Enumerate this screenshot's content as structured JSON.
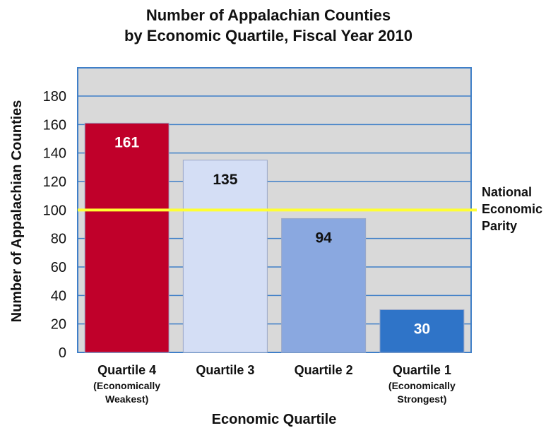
{
  "chart_data": {
    "type": "bar",
    "title_lines": [
      "Number of Appalachian Counties",
      "by Economic Quartile, Fiscal Year 2010"
    ],
    "xlabel": "Economic Quartile",
    "ylabel": "Number of Appalachian Counties",
    "ylim": [
      0,
      180
    ],
    "yticks": [
      0,
      20,
      40,
      60,
      80,
      100,
      120,
      140,
      160,
      180
    ],
    "categories": [
      "Quartile 4",
      "Quartile 3",
      "Quartile 2",
      "Quartile 1"
    ],
    "category_sublabels": [
      [
        "(Economically",
        "Weakest)"
      ],
      [],
      [],
      [
        "(Economically",
        "Strongest)"
      ]
    ],
    "values": [
      161,
      135,
      94,
      30
    ],
    "bar_colors": [
      "#c0002a",
      "#d4def5",
      "#8aa8e0",
      "#2f74c8"
    ],
    "label_colors": [
      "#ffffff",
      "#111111",
      "#111111",
      "#ffffff"
    ],
    "reference_line": {
      "value": 100,
      "label_lines": [
        "National",
        "Economic",
        "Parity"
      ],
      "color": "#ffff33"
    },
    "plot_background": "#d9d9d9",
    "grid_color": "#3f7fc8",
    "grid": true
  }
}
